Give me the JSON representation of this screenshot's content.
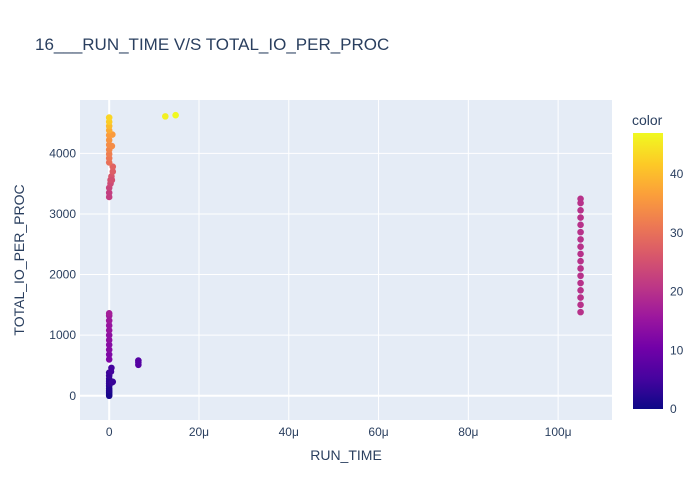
{
  "chart_data": {
    "type": "scatter",
    "title": "16___RUN_TIME V/S TOTAL_IO_PER_PROC",
    "xlabel": "RUN_TIME",
    "ylabel": "TOTAL_IO_PER_PROC",
    "xlim": [
      -6.5,
      112
    ],
    "ylim": [
      -400,
      4880
    ],
    "x_unit": "μ",
    "x_ticks": [
      0,
      20,
      40,
      60,
      80,
      100
    ],
    "x_tick_labels": [
      "0",
      "20μ",
      "40μ",
      "60μ",
      "80μ",
      "100μ"
    ],
    "y_ticks": [
      0,
      1000,
      2000,
      3000,
      4000
    ],
    "y_tick_labels": [
      "0",
      "1000",
      "2000",
      "3000",
      "4000"
    ],
    "grid": true,
    "background_color": "#e5ecf6",
    "colorbar": {
      "title": "color",
      "range": [
        0,
        47
      ],
      "ticks": [
        0,
        10,
        20,
        30,
        40
      ],
      "tick_labels": [
        "0",
        "10",
        "20",
        "30",
        "40"
      ],
      "colorscale": [
        "#0d0887",
        "#46039f",
        "#7201a8",
        "#9c179e",
        "#bd3786",
        "#d8576b",
        "#ed7953",
        "#fb9f3a",
        "#fdca26",
        "#f0f921"
      ]
    },
    "series": [
      {
        "points": [
          {
            "x": 0.0,
            "y": 0,
            "c": 1
          },
          {
            "x": 0.0,
            "y": 30,
            "c": 1
          },
          {
            "x": 0.0,
            "y": 60,
            "c": 1
          },
          {
            "x": 0.0,
            "y": 90,
            "c": 2
          },
          {
            "x": 0.0,
            "y": 120,
            "c": 2
          },
          {
            "x": 0.0,
            "y": 160,
            "c": 2
          },
          {
            "x": 0.0,
            "y": 200,
            "c": 3
          },
          {
            "x": 0.0,
            "y": 240,
            "c": 3
          },
          {
            "x": 0.0,
            "y": 280,
            "c": 3
          },
          {
            "x": 0.0,
            "y": 330,
            "c": 4
          },
          {
            "x": 0.0,
            "y": 380,
            "c": 4
          },
          {
            "x": 0.4,
            "y": 400,
            "c": 5
          },
          {
            "x": 0.5,
            "y": 460,
            "c": 5
          },
          {
            "x": 0.6,
            "y": 220,
            "c": 4
          },
          {
            "x": 0.8,
            "y": 230,
            "c": 4
          },
          {
            "x": 0.0,
            "y": 600,
            "c": 12
          },
          {
            "x": 0.0,
            "y": 680,
            "c": 12
          },
          {
            "x": 0.0,
            "y": 760,
            "c": 13
          },
          {
            "x": 0.0,
            "y": 840,
            "c": 13
          },
          {
            "x": 0.0,
            "y": 920,
            "c": 14
          },
          {
            "x": 0.0,
            "y": 1000,
            "c": 14
          },
          {
            "x": 0.0,
            "y": 1080,
            "c": 15
          },
          {
            "x": 0.0,
            "y": 1160,
            "c": 15
          },
          {
            "x": 0.0,
            "y": 1240,
            "c": 16
          },
          {
            "x": 0.0,
            "y": 1320,
            "c": 16
          },
          {
            "x": 0.0,
            "y": 1360,
            "c": 17
          },
          {
            "x": 6.5,
            "y": 510,
            "c": 7
          },
          {
            "x": 6.5,
            "y": 550,
            "c": 7
          },
          {
            "x": 6.5,
            "y": 580,
            "c": 7
          },
          {
            "x": 0.0,
            "y": 3280,
            "c": 22
          },
          {
            "x": 0.0,
            "y": 3350,
            "c": 22
          },
          {
            "x": 0.0,
            "y": 3430,
            "c": 23
          },
          {
            "x": 0.3,
            "y": 3500,
            "c": 24
          },
          {
            "x": 0.3,
            "y": 3560,
            "c": 25
          },
          {
            "x": 0.5,
            "y": 3620,
            "c": 26
          },
          {
            "x": 0.6,
            "y": 3560,
            "c": 25
          },
          {
            "x": 0.8,
            "y": 3700,
            "c": 27
          },
          {
            "x": 0.8,
            "y": 3780,
            "c": 28
          },
          {
            "x": 0.0,
            "y": 3850,
            "c": 30
          },
          {
            "x": 0.0,
            "y": 3920,
            "c": 31
          },
          {
            "x": 0.0,
            "y": 3990,
            "c": 32
          },
          {
            "x": 0.0,
            "y": 4060,
            "c": 33
          },
          {
            "x": 0.0,
            "y": 4140,
            "c": 34
          },
          {
            "x": 0.6,
            "y": 4120,
            "c": 34
          },
          {
            "x": 0.0,
            "y": 4220,
            "c": 35
          },
          {
            "x": 0.7,
            "y": 4310,
            "c": 36
          },
          {
            "x": 0.0,
            "y": 4300,
            "c": 36
          },
          {
            "x": 0.0,
            "y": 4380,
            "c": 38
          },
          {
            "x": 0.0,
            "y": 4450,
            "c": 40
          },
          {
            "x": 0.0,
            "y": 4520,
            "c": 42
          },
          {
            "x": 0.0,
            "y": 4590,
            "c": 43
          },
          {
            "x": 12.5,
            "y": 4610,
            "c": 46
          },
          {
            "x": 14.8,
            "y": 4630,
            "c": 47
          },
          {
            "x": 105,
            "y": 1380,
            "c": 20
          },
          {
            "x": 105,
            "y": 1500,
            "c": 20
          },
          {
            "x": 105,
            "y": 1620,
            "c": 20
          },
          {
            "x": 105,
            "y": 1740,
            "c": 20
          },
          {
            "x": 105,
            "y": 1860,
            "c": 20
          },
          {
            "x": 105,
            "y": 1980,
            "c": 20
          },
          {
            "x": 105,
            "y": 2100,
            "c": 20
          },
          {
            "x": 105,
            "y": 2220,
            "c": 20
          },
          {
            "x": 105,
            "y": 2340,
            "c": 20
          },
          {
            "x": 105,
            "y": 2460,
            "c": 20
          },
          {
            "x": 105,
            "y": 2580,
            "c": 20
          },
          {
            "x": 105,
            "y": 2700,
            "c": 20
          },
          {
            "x": 105,
            "y": 2820,
            "c": 20
          },
          {
            "x": 105,
            "y": 2940,
            "c": 20
          },
          {
            "x": 105,
            "y": 3060,
            "c": 20
          },
          {
            "x": 105,
            "y": 3180,
            "c": 20
          },
          {
            "x": 105,
            "y": 3250,
            "c": 20
          }
        ]
      }
    ]
  }
}
